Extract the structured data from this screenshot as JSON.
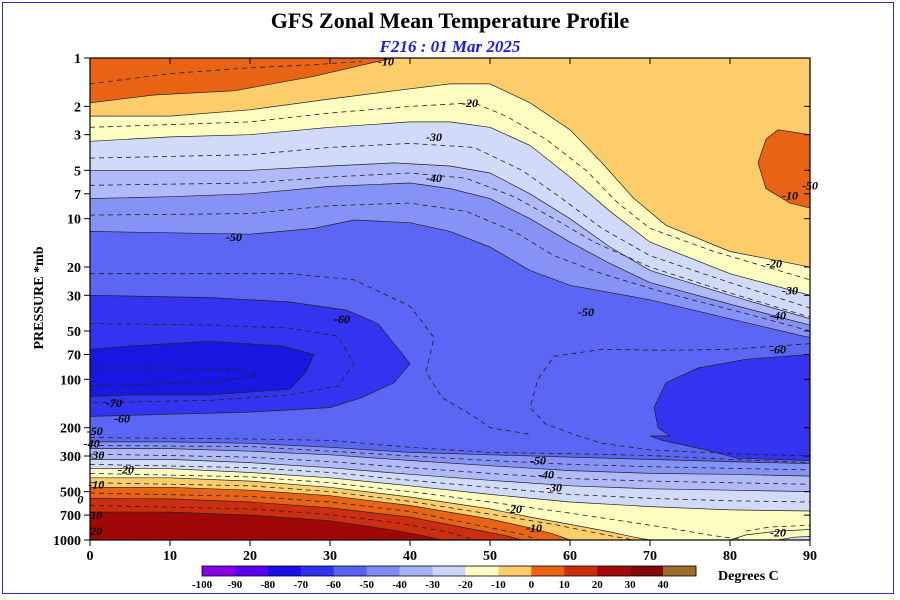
{
  "chart_data": {
    "type": "contour",
    "title": "GFS Zonal Mean Temperature Profile",
    "subtitle": "F216 : 01 Mar 2025",
    "ylabel": "PRESSURE *mb",
    "x_ticks": [
      0,
      10,
      20,
      30,
      40,
      50,
      60,
      70,
      80,
      90
    ],
    "xlim": [
      0,
      90
    ],
    "y_scale": "log",
    "ylim": [
      1000,
      1
    ],
    "y_ticks": [
      1,
      2,
      3,
      5,
      7,
      10,
      20,
      30,
      50,
      70,
      100,
      200,
      300,
      500,
      700,
      1000
    ],
    "contour_labels": [
      {
        "text": "-10",
        "x": 37,
        "p": 1.05
      },
      {
        "text": "-20",
        "x": 47.5,
        "p": 1.9
      },
      {
        "text": "-30",
        "x": 43,
        "p": 3.1
      },
      {
        "text": "-40",
        "x": 43,
        "p": 5.6
      },
      {
        "text": "-50",
        "x": 18,
        "p": 13
      },
      {
        "text": "-60",
        "x": 31.5,
        "p": 42
      },
      {
        "text": "-50",
        "x": 62,
        "p": 38
      },
      {
        "text": "-60",
        "x": 86,
        "p": 65
      },
      {
        "text": "-20",
        "x": 85.5,
        "p": 19
      },
      {
        "text": "-30",
        "x": 87.5,
        "p": 28
      },
      {
        "text": "-40",
        "x": 86,
        "p": 40
      },
      {
        "text": "-10",
        "x": 87.5,
        "p": 7.2
      },
      {
        "text": "-50",
        "x": 90,
        "p": 6.2
      },
      {
        "text": "-70",
        "x": 3,
        "p": 140
      },
      {
        "text": "-60",
        "x": 4,
        "p": 175
      },
      {
        "text": "-50",
        "x": 0.6,
        "p": 210
      },
      {
        "text": "-40",
        "x": 0.2,
        "p": 250
      },
      {
        "text": "-30",
        "x": 0.8,
        "p": 295
      },
      {
        "text": "-20",
        "x": 4.5,
        "p": 365
      },
      {
        "text": "-10",
        "x": 0.8,
        "p": 450
      },
      {
        "text": "0",
        "x": -1.2,
        "p": 560
      },
      {
        "text": "10",
        "x": 0.8,
        "p": 700
      },
      {
        "text": "20",
        "x": 0.8,
        "p": 880
      },
      {
        "text": "-50",
        "x": 56,
        "p": 320
      },
      {
        "text": "-40",
        "x": 57,
        "p": 390
      },
      {
        "text": "-30",
        "x": 58,
        "p": 470
      },
      {
        "text": "-20",
        "x": 53,
        "p": 640
      },
      {
        "text": "-10",
        "x": 55.5,
        "p": 840
      },
      {
        "text": "-20",
        "x": 86,
        "p": 900
      }
    ],
    "colorbar": {
      "levels": [
        "-100",
        "-90",
        "-80",
        "-70",
        "-60",
        "-50",
        "-40",
        "-30",
        "-20",
        "-10",
        "0",
        "10",
        "20",
        "30",
        "40"
      ],
      "colors": [
        "#8a00e8",
        "#5a00f0",
        "#1a10e6",
        "#3131f2",
        "#5a62f4",
        "#7f8cf6",
        "#a6b2f8",
        "#ccd6fa",
        "#fdfdc2",
        "#fdcd6b",
        "#e86414",
        "#cd2e10",
        "#a30a0a",
        "#840808",
        "#9c6c2c"
      ],
      "unit": "Degrees C"
    },
    "colors": {
      "lt_m70": "#1818e0",
      "m70_m60": "#3434f0",
      "m60_m50": "#5c66f4",
      "m50_m40": "#8692f6",
      "m40_m30": "#b0baf8",
      "m30_m20": "#d2daf9",
      "m20_m10": "#fdfdc2",
      "m10_0": "#fdcd6b",
      "0_10": "#e86414",
      "10_20": "#cd2e10",
      "gt_20": "#a00808"
    }
  }
}
